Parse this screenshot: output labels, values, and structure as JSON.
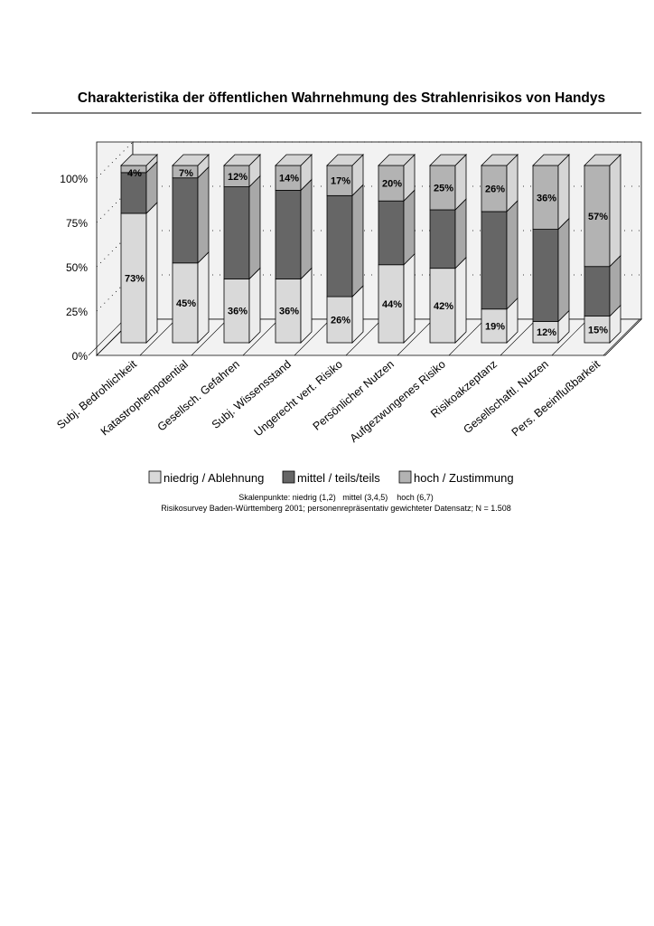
{
  "chart_data": {
    "type": "bar",
    "stacked": true,
    "title": "Charakteristika der öffentlichen Wahrnehmung des Strahlenrisikos von Handys",
    "xlabel": "",
    "ylabel": "",
    "ylim": [
      0,
      100
    ],
    "yticks": [
      "0%",
      "25%",
      "50%",
      "75%",
      "100%"
    ],
    "grid": true,
    "legend_position": "bottom",
    "categories": [
      "Subj. Bedrohlichkeit",
      "Katastrophenpotential",
      "Gesellsch. Gefahren",
      "Subj. Wissensstand",
      "Ungerecht vert. Risiko",
      "Persönlicher Nutzen",
      "Aufgezwungenes Risiko",
      "Risikoakzeptanz",
      "Gesellschaftl. Nutzen",
      "Pers. Beeinflußbarkeit"
    ],
    "series": [
      {
        "name": "niedrig / Ablehnung",
        "color": "#d9d9d9",
        "side": "#ececec",
        "values": [
          73,
          45,
          36,
          36,
          26,
          44,
          42,
          19,
          12,
          15
        ],
        "labels": [
          "73%",
          "45%",
          "36%",
          "36%",
          "26%",
          "44%",
          "42%",
          "19%",
          "12%",
          "15%"
        ]
      },
      {
        "name": "mittel / teils/teils",
        "color": "#666666",
        "side": "#a8a8a8",
        "values": [
          23,
          48,
          52,
          50,
          57,
          36,
          33,
          55,
          52,
          28
        ]
      },
      {
        "name": "hoch / Zustimmung",
        "color": "#b3b3b3",
        "side": "#d5d5d5",
        "values": [
          4,
          7,
          12,
          14,
          17,
          20,
          25,
          26,
          36,
          57
        ],
        "labels": [
          "4%",
          "7%",
          "12%",
          "14%",
          "17%",
          "20%",
          "25%",
          "26%",
          "36%",
          "57%"
        ]
      }
    ],
    "notes": [
      "Skalenpunkte: niedrig (1,2)   mittel (3,4,5)    hoch (6,7)",
      "Risikosurvey Baden-Württemberg 2001; personenrepräsentativ gewichteter Datensatz; N = 1.508"
    ]
  }
}
